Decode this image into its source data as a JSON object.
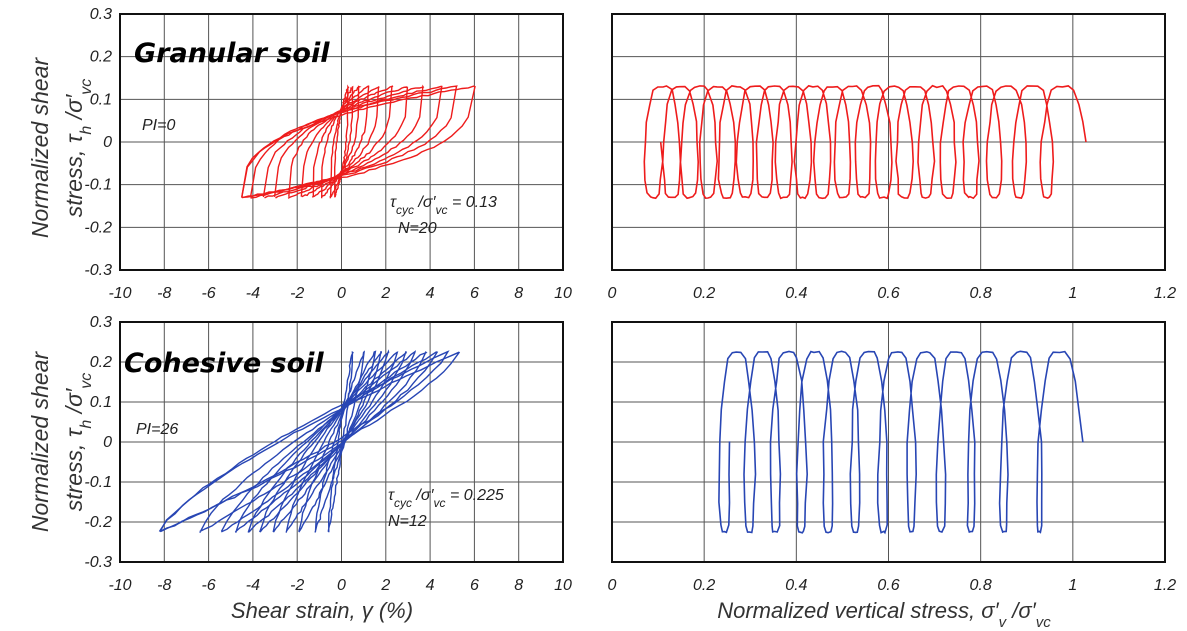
{
  "chart_data": [
    {
      "id": "granular-stress-strain",
      "type": "line",
      "soil_label": "Granular soil",
      "pi_label": "PI=0",
      "ratio_label": "τcyc /σ′vc = 0.13",
      "n_label": "N=20",
      "ylabel": "Normalized shear stress, τh /σ′vc",
      "xlabel": "",
      "xlim": [
        -10,
        10
      ],
      "ylim": [
        -0.3,
        0.3
      ],
      "xticks": [
        "-10",
        "-8",
        "-6",
        "-4",
        "-2",
        "0",
        "2",
        "4",
        "6",
        "8",
        "10"
      ],
      "yticks": [
        "0.3",
        "0.2",
        "0.1",
        "0",
        "-0.1",
        "-0.2",
        "-0.3"
      ],
      "grid": true,
      "color": "#ee1c1c",
      "curve": "stress-strain",
      "amplitude": 0.13,
      "cycles": 20,
      "strain_max": [
        0.3,
        0.5,
        0.8,
        1.2,
        1.7,
        2.3,
        3.0,
        3.7,
        4.5,
        5.2,
        6.0
      ],
      "strain_min": [
        -0.3,
        -0.5,
        -0.9,
        -1.3,
        -1.8,
        -2.4,
        -3.0,
        -3.5,
        -4.1,
        -4.5
      ]
    },
    {
      "id": "granular-stress-path",
      "type": "line",
      "ylabel": "",
      "xlabel": "",
      "xlim": [
        0,
        1.2
      ],
      "ylim": [
        -0.3,
        0.3
      ],
      "xticks": [
        "0",
        "0.2",
        "0.4",
        "0.6",
        "0.8",
        "1",
        "1.2"
      ],
      "grid": true,
      "color": "#ee1c1c",
      "curve": "stress-path",
      "amplitude": 0.13,
      "cycles": 20,
      "start": 1.0,
      "end": 0.08
    },
    {
      "id": "cohesive-stress-strain",
      "type": "line",
      "soil_label": "Cohesive soil",
      "pi_label": "PI=26",
      "ratio_label": "τcyc /σ′vc = 0.225",
      "n_label": "N=12",
      "ylabel": "Normalized shear stress, τh /σ′vc",
      "xlabel": "Shear strain, γ (%)",
      "xlim": [
        -10,
        10
      ],
      "ylim": [
        -0.3,
        0.3
      ],
      "xticks": [
        "-10",
        "-8",
        "-6",
        "-4",
        "-2",
        "0",
        "2",
        "4",
        "6",
        "8",
        "10"
      ],
      "yticks": [
        "0.3",
        "0.2",
        "0.1",
        "0",
        "-0.1",
        "-0.2",
        "-0.3"
      ],
      "grid": true,
      "color": "#2846b4",
      "curve": "stress-strain",
      "amplitude": 0.225,
      "cycles": 12,
      "strain_max": [
        0.5,
        1.0,
        1.5,
        1.8,
        2.1,
        2.5,
        2.9,
        3.3,
        3.8,
        4.3,
        4.8,
        5.3
      ],
      "strain_min": [
        -0.6,
        -1.2,
        -1.9,
        -2.5,
        -3.1,
        -3.7,
        -4.2,
        -4.8,
        -5.4,
        -6.4,
        -8.2
      ]
    },
    {
      "id": "cohesive-stress-path",
      "type": "line",
      "ylabel": "",
      "xlabel": "Normalized vertical stress, σ′v /σ′vc",
      "xlim": [
        0,
        1.2
      ],
      "ylim": [
        -0.3,
        0.3
      ],
      "xticks": [
        "0",
        "0.2",
        "0.4",
        "0.6",
        "0.8",
        "1",
        "1.2"
      ],
      "grid": true,
      "color": "#2846b4",
      "curve": "stress-path",
      "amplitude": 0.225,
      "cycles": 12,
      "start": 1.0,
      "end": 0.23
    }
  ]
}
